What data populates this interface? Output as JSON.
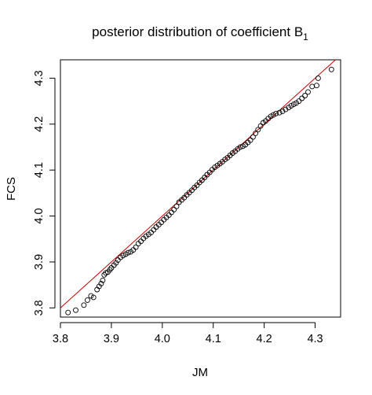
{
  "chart_data": {
    "type": "scatter",
    "title": "posterior distribution of coefficient B",
    "title_subscript": "1",
    "xlabel": "JM",
    "ylabel": "FCS",
    "xlim": [
      3.8,
      4.35
    ],
    "ylim": [
      3.78,
      4.34
    ],
    "x_ticks": [
      3.8,
      3.9,
      4.0,
      4.1,
      4.2,
      4.3
    ],
    "y_ticks": [
      3.8,
      3.9,
      4.0,
      4.1,
      4.2,
      4.3
    ],
    "x_tick_labels": [
      "3.8",
      "3.9",
      "4.0",
      "4.1",
      "4.2",
      "4.3"
    ],
    "y_tick_labels": [
      "3.8",
      "3.9",
      "4.0",
      "4.1",
      "4.2",
      "4.3"
    ],
    "marker": "open-circle",
    "point_color": "#000000",
    "reference_line": {
      "type": "y=x",
      "color": "#cc0000"
    },
    "grid": false,
    "points": [
      [
        3.815,
        3.79
      ],
      [
        3.83,
        3.795
      ],
      [
        3.846,
        3.806
      ],
      [
        3.853,
        3.817
      ],
      [
        3.86,
        3.826
      ],
      [
        3.865,
        3.823
      ],
      [
        3.872,
        3.84
      ],
      [
        3.876,
        3.847
      ],
      [
        3.88,
        3.853
      ],
      [
        3.883,
        3.86
      ],
      [
        3.886,
        3.872
      ],
      [
        3.889,
        3.876
      ],
      [
        3.893,
        3.878
      ],
      [
        3.897,
        3.883
      ],
      [
        3.9,
        3.887
      ],
      [
        3.905,
        3.893
      ],
      [
        3.909,
        3.898
      ],
      [
        3.913,
        3.904
      ],
      [
        3.918,
        3.91
      ],
      [
        3.923,
        3.914
      ],
      [
        3.928,
        3.917
      ],
      [
        3.933,
        3.92
      ],
      [
        3.938,
        3.922
      ],
      [
        3.943,
        3.926
      ],
      [
        3.948,
        3.932
      ],
      [
        3.953,
        3.94
      ],
      [
        3.958,
        3.945
      ],
      [
        3.963,
        3.951
      ],
      [
        3.968,
        3.956
      ],
      [
        3.973,
        3.96
      ],
      [
        3.978,
        3.964
      ],
      [
        3.983,
        3.97
      ],
      [
        3.988,
        3.976
      ],
      [
        3.993,
        3.981
      ],
      [
        3.998,
        3.986
      ],
      [
        4.003,
        3.992
      ],
      [
        4.008,
        3.997
      ],
      [
        4.013,
        4.002
      ],
      [
        4.018,
        4.008
      ],
      [
        4.023,
        4.014
      ],
      [
        4.028,
        4.021
      ],
      [
        4.033,
        4.03
      ],
      [
        4.038,
        4.035
      ],
      [
        4.043,
        4.04
      ],
      [
        4.048,
        4.046
      ],
      [
        4.053,
        4.051
      ],
      [
        4.058,
        4.056
      ],
      [
        4.063,
        4.062
      ],
      [
        4.068,
        4.067
      ],
      [
        4.073,
        4.073
      ],
      [
        4.078,
        4.078
      ],
      [
        4.083,
        4.084
      ],
      [
        4.088,
        4.09
      ],
      [
        4.093,
        4.095
      ],
      [
        4.098,
        4.101
      ],
      [
        4.103,
        4.106
      ],
      [
        4.108,
        4.11
      ],
      [
        4.113,
        4.114
      ],
      [
        4.118,
        4.118
      ],
      [
        4.123,
        4.123
      ],
      [
        4.128,
        4.127
      ],
      [
        4.133,
        4.132
      ],
      [
        4.138,
        4.137
      ],
      [
        4.143,
        4.141
      ],
      [
        4.148,
        4.146
      ],
      [
        4.153,
        4.15
      ],
      [
        4.158,
        4.152
      ],
      [
        4.163,
        4.155
      ],
      [
        4.168,
        4.16
      ],
      [
        4.173,
        4.165
      ],
      [
        4.178,
        4.172
      ],
      [
        4.183,
        4.18
      ],
      [
        4.188,
        4.188
      ],
      [
        4.193,
        4.196
      ],
      [
        4.198,
        4.203
      ],
      [
        4.203,
        4.207
      ],
      [
        4.208,
        4.212
      ],
      [
        4.213,
        4.217
      ],
      [
        4.218,
        4.22
      ],
      [
        4.223,
        4.223
      ],
      [
        4.23,
        4.225
      ],
      [
        4.236,
        4.228
      ],
      [
        4.242,
        4.232
      ],
      [
        4.248,
        4.236
      ],
      [
        4.253,
        4.24
      ],
      [
        4.258,
        4.243
      ],
      [
        4.263,
        4.246
      ],
      [
        4.268,
        4.25
      ],
      [
        4.274,
        4.256
      ],
      [
        4.28,
        4.262
      ],
      [
        4.286,
        4.27
      ],
      [
        4.294,
        4.282
      ],
      [
        4.303,
        4.284
      ],
      [
        4.306,
        4.3
      ],
      [
        4.332,
        4.319
      ]
    ]
  }
}
